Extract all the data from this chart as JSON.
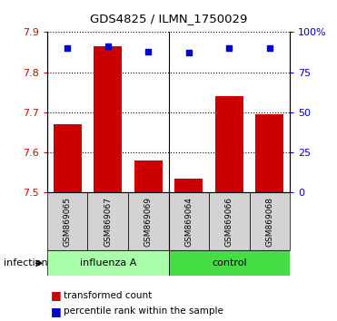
{
  "title": "GDS4825 / ILMN_1750029",
  "samples": [
    "GSM869065",
    "GSM869067",
    "GSM869069",
    "GSM869064",
    "GSM869066",
    "GSM869068"
  ],
  "transformed_counts": [
    7.67,
    7.865,
    7.58,
    7.535,
    7.74,
    7.695
  ],
  "percentile_ranks": [
    90,
    91,
    88,
    87,
    90,
    90
  ],
  "groups": [
    "influenza A",
    "influenza A",
    "influenza A",
    "control",
    "control",
    "control"
  ],
  "influenza_color": "#aaffaa",
  "control_color": "#44dd44",
  "bar_color": "#cc0000",
  "dot_color": "#0000cc",
  "ylim": [
    7.5,
    7.9
  ],
  "y_ticks": [
    7.5,
    7.6,
    7.7,
    7.8,
    7.9
  ],
  "y2_ticks": [
    0,
    25,
    50,
    75,
    100
  ],
  "y2_tick_labels": [
    "0",
    "25",
    "50",
    "75",
    "100%"
  ],
  "legend_items": [
    "transformed count",
    "percentile rank within the sample"
  ],
  "legend_colors": [
    "#cc0000",
    "#0000cc"
  ],
  "group_label": "infection",
  "sample_box_color": "#d3d3d3"
}
